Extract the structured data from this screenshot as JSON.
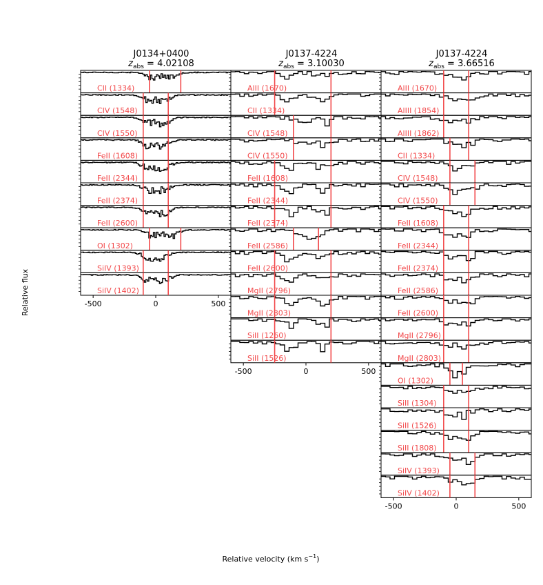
{
  "chart_data": {
    "type": "line",
    "xlabel": "Relative velocity (km s$^{-1}$)",
    "xlabel_main": "Relative velocity (km s",
    "xlabel_sup": "−1",
    "xlabel_close": ")",
    "ylabel": "Relative flux",
    "xlim": [
      -600,
      600
    ],
    "xticks": [
      -500,
      0,
      500
    ],
    "xtick_labels": [
      "-500",
      "0",
      "500"
    ],
    "colors": {
      "spectrum": "#000000",
      "marker": "#f2484a",
      "label": "#f2484a",
      "frame": "#000000"
    },
    "columns": [
      {
        "title": "J0134+0400",
        "redshift_label": "z",
        "redshift_sub": "abs",
        "redshift_value": " = 4.02108",
        "markers": [
          -50,
          100
        ],
        "panels": [
          {
            "label": "CII (1334)",
            "markers": [
              -50,
              200
            ]
          },
          {
            "label": "CIV (1548)",
            "markers": [
              -100,
              100
            ]
          },
          {
            "label": "CIV (1550)",
            "markers": [
              -100,
              100
            ]
          },
          {
            "label": "FeII (1608)",
            "markers": [
              -100,
              100
            ]
          },
          {
            "label": "FeII (2344)",
            "markers": [
              -100,
              100
            ]
          },
          {
            "label": "FeII (2374)",
            "markers": [
              -100,
              100
            ]
          },
          {
            "label": "FeII (2600)",
            "markers": [
              -100,
              100
            ]
          },
          {
            "label": "OI (1302)",
            "markers": [
              -50,
              200
            ]
          },
          {
            "label": "SiIV (1393)",
            "markers": [
              -100,
              100
            ]
          },
          {
            "label": "SiIV (1402)",
            "markers": [
              -100,
              100
            ]
          }
        ]
      },
      {
        "title": "J0137-4224",
        "redshift_label": "z",
        "redshift_sub": "abs",
        "redshift_value": " = 3.10030",
        "panels": [
          {
            "label": "AlII (1670)",
            "markers": [
              -250,
              200
            ]
          },
          {
            "label": "CII (1334)",
            "markers": [
              -250,
              200
            ]
          },
          {
            "label": "CIV (1548)",
            "markers": [
              -100,
              200
            ]
          },
          {
            "label": "CIV (1550)",
            "markers": [
              -100,
              200
            ]
          },
          {
            "label": "FeII (1608)",
            "markers": [
              -250,
              200
            ]
          },
          {
            "label": "FeII (2344)",
            "markers": [
              -250,
              200
            ]
          },
          {
            "label": "FeII (2374)",
            "markers": [
              -250,
              200
            ]
          },
          {
            "label": "FeII (2586)",
            "markers": [
              -100,
              100
            ]
          },
          {
            "label": "FeII (2600)",
            "markers": [
              -250,
              200
            ]
          },
          {
            "label": "MgII (2796)",
            "markers": [
              -250,
              200
            ]
          },
          {
            "label": "MgII (2803)",
            "markers": [
              -250,
              200
            ]
          },
          {
            "label": "SiII (1260)",
            "markers": [
              -250,
              200
            ]
          },
          {
            "label": "SiII (1526)",
            "markers": [
              -250,
              200
            ]
          }
        ]
      },
      {
        "title": "J0137-4224",
        "redshift_label": "z",
        "redshift_sub": "abs",
        "redshift_value": " = 3.66516",
        "panels": [
          {
            "label": "AlII (1670)",
            "markers": [
              -100,
              100
            ]
          },
          {
            "label": "AlIII (1854)",
            "markers": [
              -100,
              100
            ]
          },
          {
            "label": "AlIII (1862)",
            "markers": [
              -100,
              100
            ]
          },
          {
            "label": "CII (1334)",
            "markers": [
              -50,
              100
            ]
          },
          {
            "label": "CIV (1548)",
            "markers": [
              -50,
              150
            ]
          },
          {
            "label": "CIV (1550)",
            "markers": [
              -50,
              150
            ]
          },
          {
            "label": "FeII (1608)",
            "markers": [
              -100,
              100
            ]
          },
          {
            "label": "FeII (2344)",
            "markers": [
              -100,
              100
            ]
          },
          {
            "label": "FeII (2374)",
            "markers": [
              -100,
              100
            ]
          },
          {
            "label": "FeII (2586)",
            "markers": [
              -100,
              100
            ]
          },
          {
            "label": "FeII (2600)",
            "markers": [
              -100,
              100
            ]
          },
          {
            "label": "MgII (2796)",
            "markers": [
              -100,
              100
            ]
          },
          {
            "label": "MgII (2803)",
            "markers": [
              -100,
              100
            ]
          },
          {
            "label": "OI (1302)",
            "markers": [
              -50,
              50
            ]
          },
          {
            "label": "SiII (1304)",
            "markers": [
              -100,
              100
            ]
          },
          {
            "label": "SiII (1526)",
            "markers": [
              -100,
              100
            ]
          },
          {
            "label": "SiII (1808)",
            "markers": [
              -100,
              100
            ]
          },
          {
            "label": "SiIV (1393)",
            "markers": [
              -50,
              150
            ]
          },
          {
            "label": "SiIV (1402)",
            "markers": [
              -50,
              150
            ]
          }
        ]
      }
    ]
  }
}
